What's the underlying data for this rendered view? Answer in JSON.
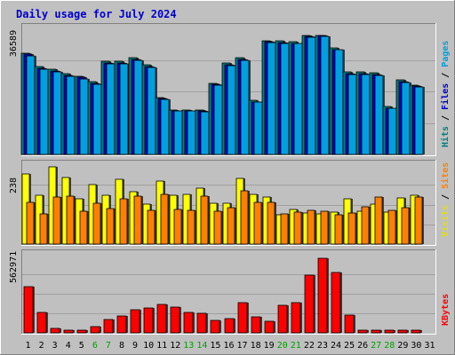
{
  "chart_data": {
    "type": "bar",
    "title": "Daily usage for July 2024",
    "x": [
      "1",
      "2",
      "3",
      "4",
      "5",
      "6",
      "7",
      "8",
      "9",
      "10",
      "11",
      "12",
      "13",
      "14",
      "15",
      "16",
      "17",
      "18",
      "19",
      "20",
      "21",
      "22",
      "23",
      "24",
      "25",
      "26",
      "27",
      "28",
      "29",
      "30",
      "31"
    ],
    "weekend_days": [
      "6",
      "7",
      "13",
      "14",
      "20",
      "21",
      "27",
      "28"
    ],
    "panels": [
      {
        "name": "hits",
        "max_label": "36589",
        "ymax": 36589,
        "side_labels": [
          {
            "text": "Hits",
            "color": "#008080"
          },
          {
            "text": " / ",
            "color": "#000000"
          },
          {
            "text": "Files",
            "color": "#0000cc"
          },
          {
            "text": " / ",
            "color": "#000000"
          },
          {
            "text": "Pages",
            "color": "#00a0e0"
          }
        ],
        "series": [
          {
            "name": "Hits",
            "color": "#008080",
            "values": [
              29500,
              25500,
              24800,
              23500,
              22800,
              21100,
              27000,
              27000,
              28000,
              26000,
              16600,
              13000,
              13000,
              13000,
              20700,
              26500,
              28000,
              15600,
              33100,
              33000,
              32700,
              34500,
              34600,
              30900,
              23900,
              24000,
              23600,
              13900,
              21600,
              20200,
              0
            ]
          },
          {
            "name": "Files",
            "color": "#0000cc",
            "values": [
              29000,
              25000,
              24300,
              23000,
              22300,
              20600,
              26600,
              26500,
              27600,
              25600,
              16200,
              12700,
              12700,
              12600,
              20300,
              26000,
              27500,
              15300,
              32800,
              32500,
              32300,
              34300,
              34400,
              30500,
              23500,
              23500,
              23200,
              13500,
              21200,
              19800,
              0
            ]
          },
          {
            "name": "Pages",
            "color": "#00a0e0",
            "values": [
              28700,
              24700,
              24000,
              22700,
              22000,
              20300,
              26300,
              26300,
              27300,
              25300,
              15900,
              12500,
              12500,
              12400,
              20100,
              25800,
              27200,
              15100,
              32500,
              32300,
              32100,
              34100,
              34200,
              30300,
              23300,
              23300,
              23000,
              13300,
              21000,
              19600,
              0
            ]
          }
        ]
      },
      {
        "name": "visits",
        "max_label": "238",
        "ymax": 238,
        "side_labels": [
          {
            "text": "Visits",
            "color": "#e0e000"
          },
          {
            "text": " / ",
            "color": "#000000"
          },
          {
            "text": "Sites",
            "color": "#ff8000"
          }
        ],
        "series": [
          {
            "name": "Visits",
            "color": "#ffff00",
            "values": [
              210,
              148,
              232,
              200,
              136,
              178,
              148,
              196,
              157,
              120,
              189,
              147,
              149,
              169,
              124,
              123,
              197,
              149,
              143,
              87,
              105,
              93,
              92,
              95,
              136,
              99,
              121,
              95,
              140,
              146,
              0
            ]
          },
          {
            "name": "Sites",
            "color": "#ff8000",
            "values": [
              126,
              90,
              143,
              144,
              100,
              122,
              107,
              136,
              145,
              102,
              151,
              103,
              102,
              145,
              100,
              109,
              160,
              125,
              125,
              91,
              95,
              101,
              99,
              89,
              94,
              112,
              141,
              102,
              109,
              142,
              0
            ]
          }
        ]
      },
      {
        "name": "kbytes",
        "max_label": "562971",
        "ymax": 562971,
        "side_labels": [
          {
            "text": "KBytes",
            "color": "#ff0000"
          }
        ],
        "series": [
          {
            "name": "KBytes",
            "color": "#ff0000",
            "values": [
              330000,
              146000,
              33000,
              21000,
              16000,
              43000,
              96000,
              124000,
              167000,
              181000,
              204000,
              186000,
              148000,
              140000,
              89000,
              101000,
              217000,
              114000,
              86000,
              198000,
              219000,
              413000,
              540000,
              438000,
              131000,
              20000,
              20000,
              20000,
              20000,
              20000,
              0
            ]
          }
        ]
      }
    ]
  }
}
